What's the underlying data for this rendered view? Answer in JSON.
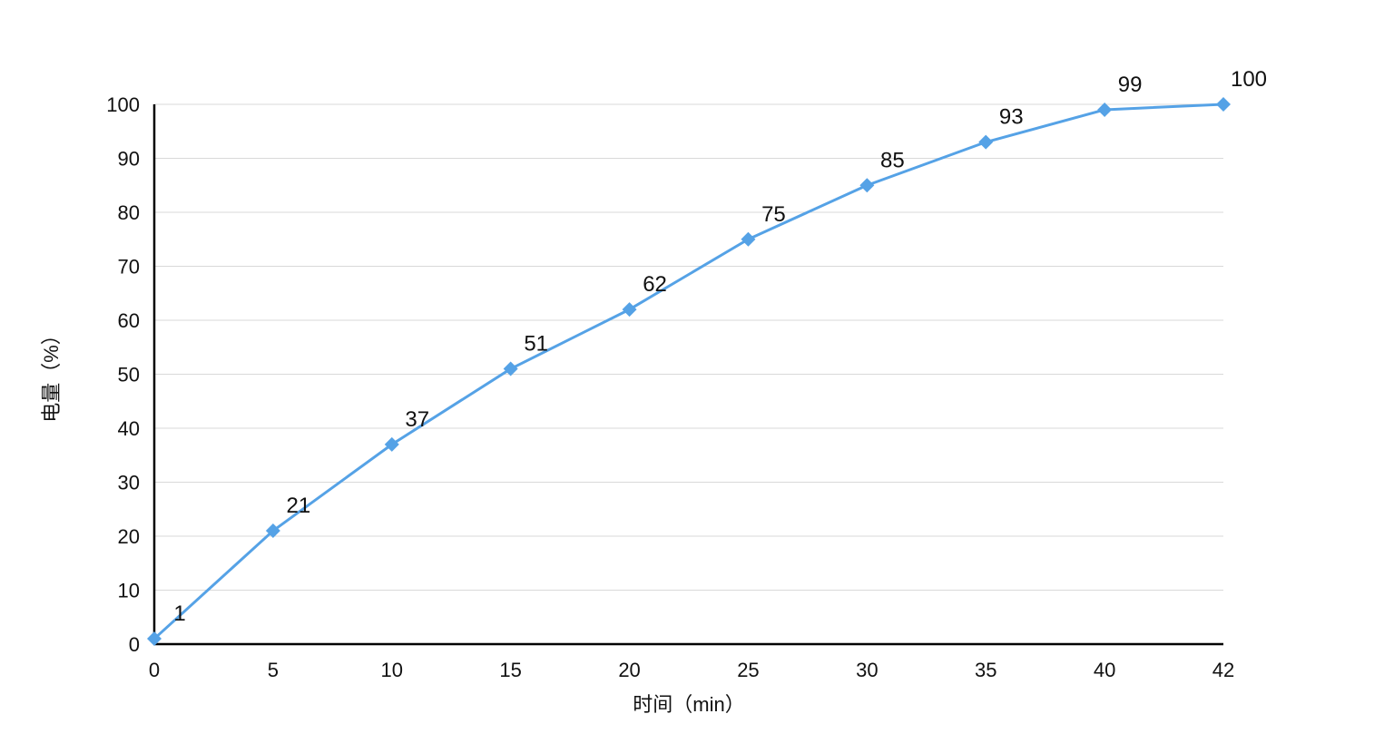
{
  "chart_data": {
    "type": "line",
    "x": [
      "0",
      "5",
      "10",
      "15",
      "20",
      "25",
      "30",
      "35",
      "40",
      "42"
    ],
    "values": [
      1,
      21,
      37,
      51,
      62,
      75,
      85,
      93,
      99,
      100
    ],
    "point_labels": [
      "1",
      "21",
      "37",
      "51",
      "62",
      "75",
      "85",
      "93",
      "99",
      "100"
    ],
    "title": "",
    "xlabel": "时间（min）",
    "ylabel": "电量（%）",
    "ylim": [
      0,
      100
    ],
    "yticks": [
      0,
      10,
      20,
      30,
      40,
      50,
      60,
      70,
      80,
      90,
      100
    ],
    "grid": "horizontal",
    "legend": "none",
    "marker": "diamond",
    "line_color": "#55A2E6",
    "marker_color": "#55A2E6",
    "grid_color": "#D9D9D9",
    "axis_color": "#000000",
    "label_color": "#111111"
  }
}
